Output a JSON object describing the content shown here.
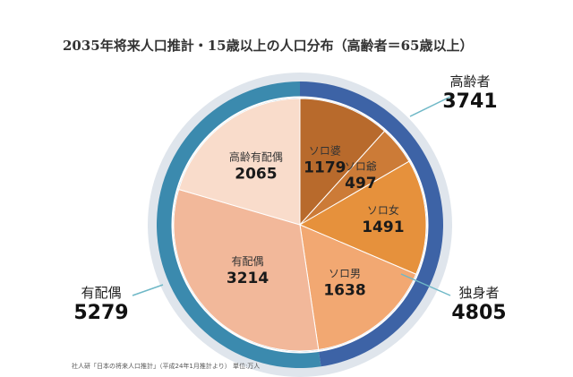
{
  "chart_data": {
    "type": "pie",
    "title": "2035年将来人口推計・15歳以上の人口分布（高齢者＝65歳以上）",
    "source": "社人研「日本の将来人口推計」（平成24年1月推計より） 単位:万人",
    "outer_ring": [
      {
        "name": "高齢者",
        "value": 3741
      },
      {
        "name": "独身者",
        "value": 4805
      },
      {
        "name": "有配偶",
        "value": 5279
      }
    ],
    "inner_pie": [
      {
        "name": "ソロ婆",
        "value": 1179
      },
      {
        "name": "ソロ爺",
        "value": 497
      },
      {
        "name": "ソロ女",
        "value": 1491
      },
      {
        "name": "ソロ男",
        "value": 1638
      },
      {
        "name": "有配偶",
        "value": 3214
      },
      {
        "name": "高齢有配偶",
        "value": 2065
      }
    ]
  },
  "colors": {
    "ring_single": "#3d63a6",
    "ring_married": "#3b8aae",
    "solo_baba": "#b86a2c",
    "solo_jiji": "#cc7b37",
    "solo_onna": "#e6913c",
    "solo_otoko": "#f2a872",
    "married": "#f2b89a",
    "elder_married": "#f9dccb"
  }
}
